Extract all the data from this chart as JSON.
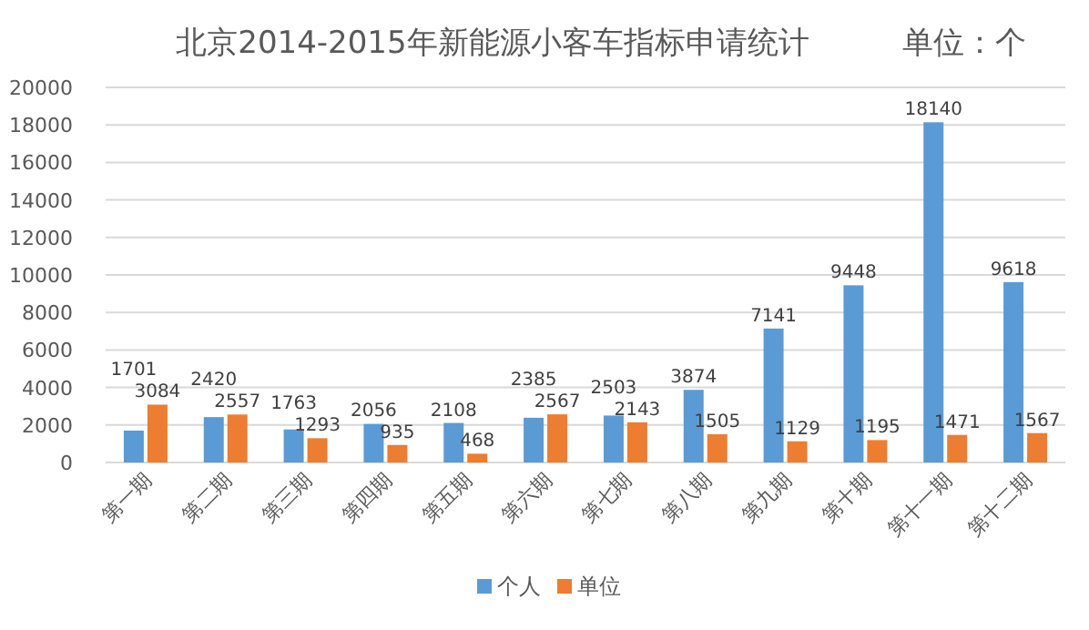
{
  "chart_data": {
    "type": "bar",
    "title": "北京2014-2015年新能源小客车指标申请统计　　　单位：个",
    "categories": [
      "第一期",
      "第二期",
      "第三期",
      "第四期",
      "第五期",
      "第六期",
      "第七期",
      "第八期",
      "第九期",
      "第十期",
      "第十一期",
      "第十二期"
    ],
    "series": [
      {
        "name": "个人",
        "color": "#5b9bd5",
        "values": [
          1701,
          2420,
          1763,
          2056,
          2108,
          2385,
          2503,
          3874,
          7141,
          9448,
          18140,
          9618
        ]
      },
      {
        "name": "单位",
        "color": "#ed7d31",
        "values": [
          3084,
          2557,
          1293,
          935,
          468,
          2567,
          2143,
          1505,
          1129,
          1195,
          1471,
          1567
        ]
      }
    ],
    "ylim": [
      0,
      20000
    ],
    "yticks": [
      0,
      2000,
      4000,
      6000,
      8000,
      10000,
      12000,
      14000,
      16000,
      18000,
      20000
    ],
    "grid": "y",
    "legend": "bottom",
    "data_labels": true
  }
}
